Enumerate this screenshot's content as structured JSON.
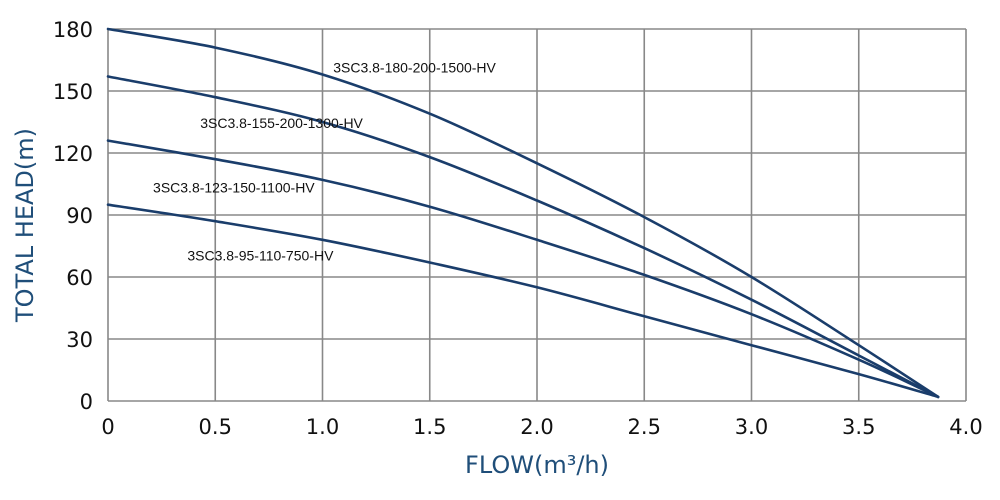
{
  "chart_data": {
    "type": "line",
    "xlabel": "FLOW(m³/h)",
    "ylabel": "TOTAL HEAD(m)",
    "xlim": [
      0,
      4
    ],
    "ylim": [
      0,
      180
    ],
    "x_ticks": [
      "0",
      "0.5",
      "1.0",
      "1.5",
      "2.0",
      "2.5",
      "3.0",
      "3.5",
      "4.0"
    ],
    "y_ticks": [
      "0",
      "30",
      "60",
      "90",
      "120",
      "150",
      "180"
    ],
    "grid": true,
    "line_color": "#1a3d6b",
    "grid_color": "#888888",
    "series": [
      {
        "name": "3SC3.8-180-200-1500-HV",
        "x": [
          0,
          0.5,
          1.0,
          1.5,
          2.0,
          2.5,
          3.0,
          3.5,
          3.87
        ],
        "y": [
          180,
          171,
          158,
          139,
          115,
          89,
          60,
          27,
          2
        ]
      },
      {
        "name": "3SC3.8-155-200-1300-HV",
        "x": [
          0,
          0.5,
          1.0,
          1.5,
          2.0,
          2.5,
          3.0,
          3.5,
          3.87
        ],
        "y": [
          157,
          147,
          135,
          118,
          97,
          74,
          49,
          22,
          2
        ]
      },
      {
        "name": "3SC3.8-123-150-1100-HV",
        "x": [
          0,
          0.5,
          1.0,
          1.5,
          2.0,
          2.5,
          3.0,
          3.5,
          3.87
        ],
        "y": [
          126,
          117,
          107,
          94,
          78,
          61,
          42,
          20,
          2
        ]
      },
      {
        "name": "3SC3.8-95-110-750-HV",
        "x": [
          0,
          0.5,
          1.0,
          1.5,
          2.0,
          2.5,
          3.0,
          3.5,
          3.87
        ],
        "y": [
          95,
          87,
          78,
          67,
          55,
          41,
          27,
          13,
          2
        ]
      }
    ]
  }
}
